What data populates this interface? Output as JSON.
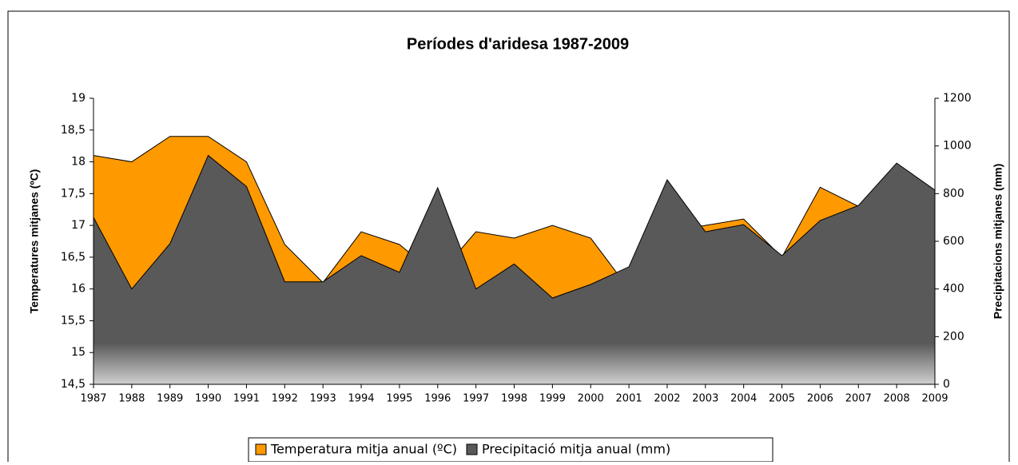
{
  "chart_data": {
    "type": "area",
    "title": "Períodes d'aridesa 1987-2009",
    "categories": [
      "1987",
      "1988",
      "1989",
      "1990",
      "1991",
      "1992",
      "1993",
      "1994",
      "1995",
      "1996",
      "1997",
      "1998",
      "1999",
      "2000",
      "2001",
      "2002",
      "2003",
      "2004",
      "2005",
      "2006",
      "2007",
      "2008",
      "2009"
    ],
    "series": [
      {
        "name": "Temperatura mitja anual (ºC)",
        "color": "#ff9900",
        "axis": "y",
        "values": [
          18.1,
          18.0,
          18.4,
          18.4,
          18.0,
          16.7,
          16.1,
          16.9,
          16.7,
          16.2,
          16.9,
          16.8,
          17.0,
          16.8,
          16.0,
          16.9,
          17.0,
          17.1,
          16.5,
          17.6,
          17.3,
          17.1,
          17.3
        ]
      },
      {
        "name": "Precipitació mitja anual (mm)",
        "color": "#595959",
        "axis": "y2",
        "values": [
          700,
          400,
          590,
          960,
          830,
          430,
          430,
          540,
          470,
          825,
          400,
          505,
          362,
          419,
          493,
          858,
          640,
          670,
          540,
          687,
          750,
          928,
          815
        ]
      }
    ],
    "ylabel": "Temperatures mitjanes (ºC)",
    "y2label": "Precipitacions mitjanes (mm)",
    "ylim": [
      14.5,
      19
    ],
    "yticks": [
      {
        "value": 14.5,
        "label": "14,5"
      },
      15,
      {
        "value": 15.5,
        "label": "15,5"
      },
      16,
      {
        "value": 16.5,
        "label": "16,5"
      },
      17,
      {
        "value": 17.5,
        "label": "17,5"
      },
      18,
      {
        "value": 18.5,
        "label": "18,5"
      },
      19
    ],
    "y2lim": [
      0,
      1200
    ],
    "y2ticks": [
      0,
      200,
      400,
      600,
      800,
      1000,
      1200
    ],
    "legend": "bottom"
  }
}
